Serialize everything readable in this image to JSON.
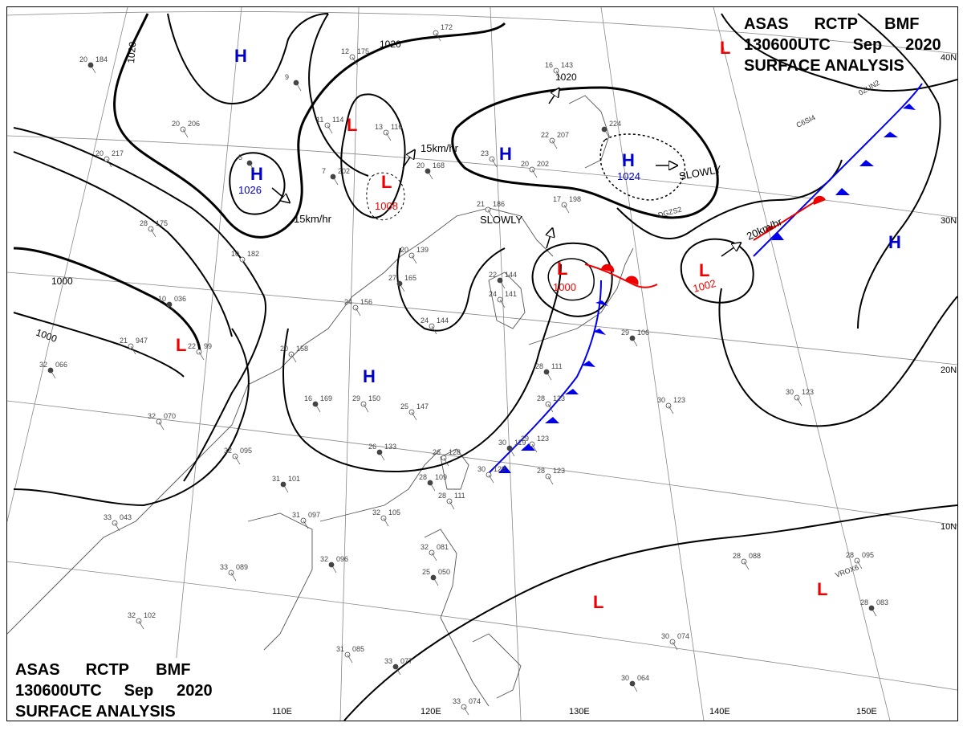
{
  "header_top": {
    "line1": [
      "ASAS",
      "RCTP",
      "BMF"
    ],
    "line2": [
      "130600UTC",
      "Sep",
      "2020"
    ],
    "line3": "SURFACE ANALYSIS"
  },
  "header_bottom": {
    "line1": [
      "ASAS",
      "RCTP",
      "BMF"
    ],
    "line2": [
      "130600UTC",
      "Sep",
      "2020"
    ],
    "line3": "SURFACE ANALYSIS"
  },
  "legend_symbol": "L",
  "longitude_labels": [
    "110E",
    "120E",
    "130E",
    "140E",
    "150E"
  ],
  "latitude_labels": [
    "40N",
    "30N",
    "20N",
    "10N"
  ],
  "isobar_labels": [
    "1020",
    "1020",
    "1020",
    "1000",
    "1000"
  ],
  "pressure_centers": [
    {
      "type": "H",
      "value": ""
    },
    {
      "type": "H",
      "value": "1026"
    },
    {
      "type": "L",
      "value": ""
    },
    {
      "type": "L",
      "value": "1008"
    },
    {
      "type": "H",
      "value": ""
    },
    {
      "type": "H",
      "value": "1024"
    },
    {
      "type": "L",
      "value": "1000"
    },
    {
      "type": "L",
      "value": "1002"
    },
    {
      "type": "H",
      "value": ""
    },
    {
      "type": "L",
      "value": ""
    },
    {
      "type": "H",
      "value": ""
    },
    {
      "type": "L",
      "value": ""
    },
    {
      "type": "L",
      "value": ""
    }
  ],
  "motion_labels": [
    "15km/hr",
    "15km/hr",
    "SLOWLY",
    "SLOWLY",
    "20km/hr"
  ],
  "colors": {
    "high": "#0000cc",
    "low": "#ee0000",
    "cold_front": "#0000ee",
    "warm_front": "#ee0000",
    "grid": "#888888",
    "isobar": "#000000"
  },
  "station_plots": [
    {
      "t": "20",
      "p": "184"
    },
    {
      "t": "",
      "p": "172"
    },
    {
      "t": "12",
      "p": "175"
    },
    {
      "t": "9",
      "p": ""
    },
    {
      "t": "11",
      "p": "114"
    },
    {
      "t": "13",
      "p": "116"
    },
    {
      "t": "7",
      "p": "202"
    },
    {
      "t": "20",
      "p": "206"
    },
    {
      "t": "20",
      "p": "217"
    },
    {
      "t": "5",
      "p": ""
    },
    {
      "t": "28",
      "p": "175"
    },
    {
      "t": "10",
      "p": "182"
    },
    {
      "t": "10",
      "p": "036"
    },
    {
      "t": "21",
      "p": "947"
    },
    {
      "t": "22",
      "p": "99"
    },
    {
      "t": "32",
      "p": "066"
    },
    {
      "t": "32",
      "p": "070"
    },
    {
      "t": "20",
      "p": "158"
    },
    {
      "t": "16",
      "p": "169"
    },
    {
      "t": "29",
      "p": "150"
    },
    {
      "t": "24",
      "p": "156"
    },
    {
      "t": "27",
      "p": "165"
    },
    {
      "t": "20",
      "p": "139"
    },
    {
      "t": "21",
      "p": "186"
    },
    {
      "t": "20",
      "p": "168"
    },
    {
      "t": "22",
      "p": "207"
    },
    {
      "t": "17",
      "p": "198"
    },
    {
      "t": "",
      "p": "224"
    },
    {
      "t": "16",
      "p": "143"
    },
    {
      "t": "23",
      "p": ""
    },
    {
      "t": "22",
      "p": "144"
    },
    {
      "t": "24",
      "p": "141"
    },
    {
      "t": "24",
      "p": "144"
    },
    {
      "t": "26",
      "p": "133"
    },
    {
      "t": "25",
      "p": "147"
    },
    {
      "t": "26",
      "p": "128"
    },
    {
      "t": "28",
      "p": "111"
    },
    {
      "t": "28",
      "p": "123"
    },
    {
      "t": "29",
      "p": "123"
    },
    {
      "t": "30",
      "p": "119"
    },
    {
      "t": "28",
      "p": "123"
    },
    {
      "t": "30",
      "p": "128"
    },
    {
      "t": "29",
      "p": "106"
    },
    {
      "t": "30",
      "p": "123"
    },
    {
      "t": "30",
      "p": "123"
    },
    {
      "t": "31",
      "p": "101"
    },
    {
      "t": "31",
      "p": "097"
    },
    {
      "t": "32",
      "p": "105"
    },
    {
      "t": "28",
      "p": "109"
    },
    {
      "t": "28",
      "p": "111"
    },
    {
      "t": "33",
      "p": "089"
    },
    {
      "t": "32",
      "p": "096"
    },
    {
      "t": "33",
      "p": "043"
    },
    {
      "t": "32",
      "p": "081"
    },
    {
      "t": "25",
      "p": "050"
    },
    {
      "t": "32",
      "p": "102"
    },
    {
      "t": "31",
      "p": "085"
    },
    {
      "t": "33",
      "p": "077"
    },
    {
      "t": "33",
      "p": "074"
    },
    {
      "t": "30",
      "p": "074"
    },
    {
      "t": "30",
      "p": "064"
    },
    {
      "t": "28",
      "p": "088"
    },
    {
      "t": "28",
      "p": "095"
    },
    {
      "t": "28",
      "p": "083"
    },
    {
      "t": "32",
      "p": "095"
    },
    {
      "t": "20",
      "p": "202"
    }
  ],
  "station_ids": [
    "0ZUN2",
    "DGZS2",
    "C6SI4",
    "VROX6"
  ]
}
